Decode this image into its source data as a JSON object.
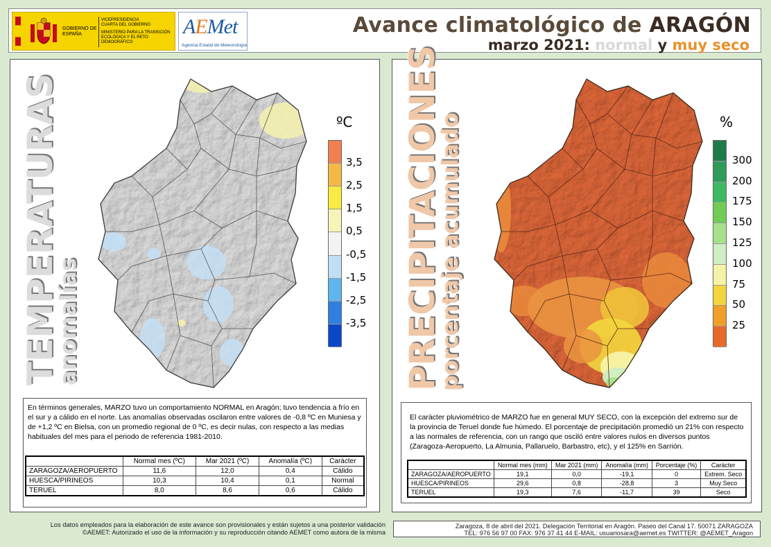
{
  "header": {
    "gov_line1": "VICEPRESIDENCIA",
    "gov_line2": "CUARTA DEL GOBIERNO",
    "gov_gob": "GOBIERNO DE ESPAÑA",
    "gov_ministry": "MINISTERIO PARA LA TRANSICIÓN ECOLÓGICA Y EL RETO DEMOGRÁFICO",
    "aemet_logo": "AEMet",
    "aemet_agency": "Agencia Estatal de Meteorología",
    "title_prefix": "Avance climatológico de ",
    "title_region": "ARAGÓN",
    "subtitle_date": "marzo 2021: ",
    "subtitle_normal": "normal",
    "subtitle_y": " y ",
    "subtitle_seco": "muy seco"
  },
  "temp_panel": {
    "vtitle_big": "TEMPERATURAS",
    "vtitle_small": "anomalías",
    "legend_unit": "ºC",
    "legend_labels": [
      "3,5",
      "2,5",
      "1,5",
      "0,5",
      "-0,5",
      "-1,5",
      "-2,5",
      "-3,5"
    ],
    "legend_colors": [
      "#f08050",
      "#f5b845",
      "#f8ec40",
      "#f7f4b8",
      "#f3f3f3",
      "#c0dff4",
      "#5fb5ee",
      "#2d7fe0",
      "#0a48c8"
    ],
    "text": "En términos generales, MARZO tuvo un comportamiento NORMAL en Aragón; tuvo tendencia a frío en el sur y a cálido en el norte. Las anomalías observadas oscilaron entre valores de -0,8 ºC en Muniesa y de +1,2 ºC en Bielsa, con un promedio regional de 0 ºC, es decir nulas, con respecto a las medias habituales del mes para el periodo de referencia 1981-2010.",
    "table": {
      "headers": [
        "Normal mes (ºC)",
        "Mar 2021 (ºC)",
        "Anomalía (ºC)",
        "Carácter"
      ],
      "rows": [
        {
          "name": "ZARAGOZA/AEROPUERTO",
          "normal": "11,6",
          "mar": "12,0",
          "anom": "0,4",
          "car": "Cálido"
        },
        {
          "name": "HUESCA/PIRINEOS",
          "normal": "10,3",
          "mar": "10,4",
          "anom": "0,1",
          "car": "Normal"
        },
        {
          "name": "TERUEL",
          "normal": "8,0",
          "mar": "8,6",
          "anom": "0,6",
          "car": "Cálido"
        }
      ]
    }
  },
  "prec_panel": {
    "vtitle_big": "PRECIPITACIONES",
    "vtitle_small": "porcentaje acumulado",
    "legend_unit": "%",
    "legend_labels": [
      "300",
      "200",
      "175",
      "150",
      "125",
      "100",
      "75",
      "50",
      "25"
    ],
    "legend_colors": [
      "#1f7a4a",
      "#2f9a5a",
      "#3dba60",
      "#70cc55",
      "#a6e08c",
      "#cfeec3",
      "#f6f3a8",
      "#f3d63d",
      "#f0a028",
      "#e86a2a"
    ],
    "text": "El carácter pluviométrico de MARZO fue en general MUY SECO, con la excepción del extremo sur de la provincia de Teruel donde fue húmedo. El porcentaje de precipitación promedió un 21% con respecto a las normales de referencia, con un rango que osciló entre valores nulos en diversos puntos (Zaragoza-Aeropuerto, La Almunia, Pallaruelo, Barbastro, etc), y el 125% en Sarrión.",
    "table": {
      "headers": [
        "Normal mes (mm)",
        "Mar 2021 (mm)",
        "Anomalía (mm)",
        "Porcentaje (%)",
        "Carácter"
      ],
      "rows": [
        {
          "name": "ZARAGOZA/AEROPUERTO",
          "normal": "19,1",
          "mar": "0,0",
          "anom": "-19,1",
          "pct": "0",
          "car": "Extrem. Seco"
        },
        {
          "name": "HUESCA/PIRINEOS",
          "normal": "29,6",
          "mar": "0,8",
          "anom": "-28,8",
          "pct": "3",
          "car": "Muy Seco"
        },
        {
          "name": "TERUEL",
          "normal": "19,3",
          "mar": "7,6",
          "anom": "-11,7",
          "pct": "39",
          "car": "Seco"
        }
      ]
    }
  },
  "footer": {
    "left_line1": "Los datos empleados para la elaboración de este avance son provisionales y están sujetos a una posterior validación",
    "left_line2": "©AEMET: Autorizado el uso de la información y su reproducción citando AEMET como autora de la misma",
    "right_line1": "Zaragoza, 8 de abril del 2021. Delegación Territorial en Aragón. Paseo del Canal 17. 50071 ZARAGOZA",
    "right_line2": "TEL: 976 56 97 00  FAX: 976 37 41 44  E-MAIL: usuariosara@aemet.es  TWITTER: @AEMET_Aragon"
  }
}
